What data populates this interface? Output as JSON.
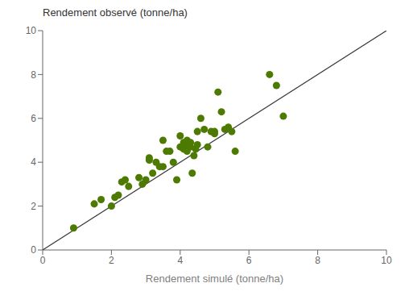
{
  "chart_data": {
    "type": "scatter",
    "xlabel": "Rendement simulé (tonne/ha)",
    "ylabel": "Rendement observé (tonne/ha)",
    "xlim": [
      0,
      10
    ],
    "ylim": [
      0,
      10
    ],
    "xticks": [
      0,
      2,
      4,
      6,
      8,
      10
    ],
    "yticks": [
      0,
      2,
      4,
      6,
      8,
      10
    ],
    "grid": false,
    "series": [
      {
        "type": "line",
        "color": "#3a3a3a",
        "line_style": "solid",
        "x": [
          0,
          10
        ],
        "values": [
          0,
          10
        ]
      },
      {
        "type": "scatter",
        "color": "#4d7a00",
        "marker": "circle",
        "x": [
          0.9,
          1.5,
          1.7,
          2.0,
          2.1,
          2.2,
          2.3,
          2.4,
          2.5,
          2.8,
          2.9,
          3.0,
          3.1,
          3.1,
          3.2,
          3.3,
          3.4,
          3.5,
          3.5,
          3.6,
          3.7,
          3.8,
          3.9,
          4.0,
          4.0,
          4.1,
          4.1,
          4.15,
          4.2,
          4.2,
          4.3,
          4.3,
          4.35,
          4.4,
          4.45,
          4.5,
          4.5,
          4.6,
          4.7,
          4.8,
          4.9,
          5.0,
          5.0,
          5.1,
          5.2,
          5.3,
          5.4,
          5.5,
          5.6,
          6.6,
          6.8,
          7.0
        ],
        "values": [
          1.0,
          2.1,
          2.3,
          2.0,
          2.4,
          2.5,
          3.1,
          3.2,
          2.9,
          3.3,
          3.0,
          3.2,
          4.2,
          4.1,
          3.5,
          4.0,
          3.8,
          5.0,
          3.8,
          4.5,
          4.5,
          4.0,
          3.2,
          4.7,
          5.2,
          4.6,
          4.9,
          4.8,
          5.0,
          4.5,
          4.9,
          4.7,
          3.5,
          4.3,
          4.6,
          4.8,
          5.4,
          6.0,
          5.5,
          4.7,
          5.4,
          5.4,
          5.3,
          7.2,
          6.3,
          5.5,
          5.6,
          5.4,
          4.5,
          8.0,
          7.5,
          6.1
        ]
      }
    ]
  }
}
